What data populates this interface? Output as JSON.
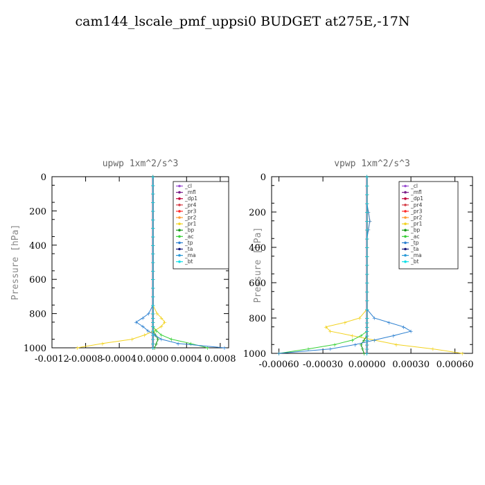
{
  "title": "cam144_lscale_pmf_uppsi0  BUDGET at275E,-17N",
  "colors": {
    "_cl": "#9a4fd1",
    "_mfl": "#7a1e8a",
    "_dp1": "#c0003a",
    "_pr4": "#d6404a",
    "_pr3": "#ff2a2a",
    "_pr2": "#ff9a30",
    "_pr1": "#f2d21e",
    "_bp": "#1a9a1a",
    "_ac": "#36d036",
    "_tp": "#2a7fd0",
    "_ta": "#1a1a7a",
    "_ma": "#2a9ad8",
    "_bt": "#10e0e8"
  },
  "chart_data": [
    {
      "type": "line",
      "title": "upwp  1xm^2/s^3",
      "ylabel": "Pressure [hPa]",
      "xlim": [
        -0.0012,
        0.0009
      ],
      "ylim": [
        1000,
        0
      ],
      "xticks": [
        "-0.0012",
        "-0.0008",
        "-0.0004",
        "0.0000",
        "0.0004",
        "0.0008"
      ],
      "yticks": [
        "0",
        "200",
        "400",
        "600",
        "800",
        "1000"
      ],
      "legend_loc": "top-right",
      "pressure": [
        0,
        50,
        100,
        150,
        200,
        250,
        300,
        350,
        400,
        450,
        500,
        550,
        600,
        650,
        700,
        750,
        800,
        825,
        850,
        875,
        900,
        925,
        950,
        975,
        1000
      ],
      "series": [
        {
          "name": "_cl",
          "values": [
            0,
            0,
            0,
            0,
            0,
            0,
            0,
            0,
            0,
            0,
            0,
            0,
            0,
            0,
            0,
            0,
            0,
            0,
            0,
            0,
            0,
            0,
            0,
            0,
            0
          ]
        },
        {
          "name": "_mfl",
          "values": [
            0,
            0,
            0,
            0,
            0,
            0,
            0,
            0,
            0,
            0,
            0,
            0,
            0,
            0,
            0,
            0,
            0,
            0,
            0,
            0,
            0,
            0,
            0,
            0,
            0
          ]
        },
        {
          "name": "_dp1",
          "values": [
            0,
            0,
            0,
            0,
            0,
            0,
            0,
            0,
            0,
            0,
            0,
            0,
            0,
            0,
            0,
            0,
            0,
            0,
            0,
            0,
            0,
            0,
            0,
            0,
            0
          ]
        },
        {
          "name": "_pr4",
          "values": [
            0,
            0,
            0,
            0,
            0,
            0,
            0,
            0,
            0,
            0,
            0,
            0,
            0,
            0,
            0,
            0,
            0,
            0,
            0,
            0,
            0,
            0,
            0,
            0,
            0
          ]
        },
        {
          "name": "_pr3",
          "values": [
            0,
            0,
            0,
            0,
            0,
            0,
            0,
            0,
            0,
            0,
            0,
            0,
            0,
            0,
            0,
            0,
            0,
            0,
            0,
            0,
            0,
            0,
            0,
            0,
            0
          ]
        },
        {
          "name": "_pr2",
          "values": [
            0,
            0,
            0,
            0,
            0,
            0,
            0,
            0,
            0,
            0,
            0,
            0,
            0,
            0,
            0,
            0,
            0,
            0,
            0,
            0,
            0,
            0,
            0,
            0,
            0
          ]
        },
        {
          "name": "_pr1",
          "values": [
            0,
            0,
            0,
            0,
            0,
            0,
            0,
            0,
            0,
            0,
            0,
            0,
            0,
            0,
            0,
            0,
            5e-05,
            0.0001,
            0.00014,
            0.0001,
            2e-05,
            -0.0001,
            -0.00025,
            -0.0006,
            -0.0009
          ]
        },
        {
          "name": "_bp",
          "values": [
            0,
            0,
            0,
            0,
            0,
            0,
            0,
            0,
            0,
            0,
            0,
            0,
            0,
            0,
            0,
            0,
            0,
            0,
            0,
            0,
            0,
            3e-05,
            6e-05,
            4e-05,
            2e-05
          ]
        },
        {
          "name": "_ac",
          "values": [
            0,
            0,
            0,
            0,
            0,
            0,
            0,
            0,
            0,
            0,
            0,
            0,
            0,
            0,
            0,
            0,
            0,
            0,
            0,
            0,
            4e-05,
            0.0001,
            0.00022,
            0.00045,
            0.00065
          ]
        },
        {
          "name": "_tp",
          "values": [
            0,
            0,
            0,
            0,
            0,
            0,
            0,
            0,
            0,
            0,
            0,
            0,
            0,
            0,
            0,
            0,
            -5e-05,
            -0.00012,
            -0.0002,
            -0.00012,
            -6e-05,
            2e-05,
            0.0001,
            0.0003,
            0.00085
          ]
        },
        {
          "name": "_ta",
          "values": [
            0,
            0,
            0,
            0,
            0,
            0,
            0,
            0,
            0,
            0,
            0,
            0,
            0,
            0,
            0,
            0,
            0,
            0,
            0,
            0,
            0,
            0,
            0,
            0,
            0
          ]
        },
        {
          "name": "_ma",
          "values": [
            0,
            0,
            0,
            0,
            0,
            0,
            0,
            0,
            0,
            0,
            0,
            0,
            0,
            0,
            0,
            0,
            0,
            0,
            0,
            0,
            0,
            0,
            0,
            0,
            0
          ]
        },
        {
          "name": "_bt",
          "values": [
            0,
            0,
            0,
            0,
            0,
            0,
            0,
            0,
            0,
            0,
            0,
            0,
            0,
            0,
            0,
            0,
            0,
            0,
            0,
            0,
            0,
            0,
            0,
            0,
            0
          ]
        }
      ]
    },
    {
      "type": "line",
      "title": "vpwp  1xm^2/s^3",
      "ylabel": "Pressure [hPa]",
      "xlim": [
        -0.00065,
        0.00072
      ],
      "ylim": [
        1000,
        0
      ],
      "xticks": [
        "-0.00060",
        "-0.00030",
        "0.00000",
        "0.00030",
        "0.00060"
      ],
      "yticks": [
        "0",
        "200",
        "400",
        "600",
        "800",
        "1000"
      ],
      "legend_loc": "top-right",
      "pressure": [
        0,
        50,
        100,
        150,
        200,
        250,
        300,
        350,
        400,
        450,
        500,
        550,
        600,
        650,
        700,
        750,
        800,
        825,
        850,
        875,
        900,
        925,
        950,
        975,
        1000
      ],
      "series": [
        {
          "name": "_cl",
          "values": [
            0,
            0,
            0,
            0,
            0,
            0,
            0,
            0,
            0,
            0,
            0,
            0,
            0,
            0,
            0,
            0,
            0,
            0,
            0,
            0,
            0,
            0,
            0,
            0,
            0
          ]
        },
        {
          "name": "_mfl",
          "values": [
            0,
            0,
            0,
            0,
            0,
            0,
            0,
            0,
            0,
            0,
            0,
            0,
            0,
            0,
            0,
            0,
            0,
            0,
            0,
            0,
            0,
            0,
            0,
            0,
            0
          ]
        },
        {
          "name": "_dp1",
          "values": [
            0,
            0,
            0,
            0,
            0,
            0,
            0,
            0,
            0,
            0,
            0,
            0,
            0,
            0,
            0,
            0,
            0,
            0,
            0,
            0,
            0,
            0,
            0,
            0,
            0
          ]
        },
        {
          "name": "_pr4",
          "values": [
            0,
            0,
            0,
            0,
            0,
            0,
            0,
            0,
            0,
            0,
            0,
            0,
            0,
            0,
            0,
            0,
            0,
            0,
            0,
            0,
            0,
            0,
            0,
            0,
            0
          ]
        },
        {
          "name": "_pr3",
          "values": [
            0,
            0,
            0,
            0,
            0,
            0,
            0,
            0,
            0,
            0,
            0,
            0,
            0,
            0,
            0,
            0,
            0,
            0,
            0,
            0,
            0,
            0,
            0,
            0,
            0
          ]
        },
        {
          "name": "_pr2",
          "values": [
            0,
            0,
            0,
            0,
            1e-05,
            2e-05,
            1e-05,
            0,
            0,
            0,
            0,
            0,
            0,
            0,
            0,
            0,
            0,
            0,
            0,
            0,
            0,
            0,
            0,
            0,
            0
          ]
        },
        {
          "name": "_pr1",
          "values": [
            0,
            0,
            0,
            0,
            0,
            0,
            0,
            0,
            0,
            0,
            0,
            0,
            0,
            0,
            0,
            0,
            -5e-05,
            -0.00015,
            -0.00028,
            -0.00025,
            -0.0001,
            5e-05,
            0.0002,
            0.00045,
            0.00065
          ]
        },
        {
          "name": "_bp",
          "values": [
            0,
            0,
            0,
            0,
            0,
            0,
            0,
            0,
            0,
            0,
            0,
            0,
            0,
            0,
            0,
            0,
            0,
            0,
            0,
            0,
            0,
            -2e-05,
            -4e-05,
            -3e-05,
            -2e-05
          ]
        },
        {
          "name": "_ac",
          "values": [
            0,
            0,
            0,
            0,
            0,
            0,
            0,
            0,
            0,
            0,
            0,
            0,
            0,
            0,
            0,
            0,
            0,
            0,
            0,
            0,
            -4e-05,
            -0.0001,
            -0.00022,
            -0.0004,
            -0.0006
          ]
        },
        {
          "name": "_tp",
          "values": [
            0,
            0,
            0,
            0,
            1e-05,
            2e-05,
            1e-05,
            0,
            0,
            0,
            0,
            0,
            0,
            0,
            0,
            0,
            5e-05,
            0.00015,
            0.00025,
            0.0003,
            0.00018,
            5e-05,
            -8e-05,
            -0.00025,
            -0.0006
          ]
        },
        {
          "name": "_ta",
          "values": [
            0,
            0,
            0,
            0,
            0,
            0,
            0,
            0,
            0,
            0,
            0,
            0,
            0,
            0,
            0,
            0,
            0,
            0,
            0,
            0,
            0,
            0,
            0,
            0,
            0
          ]
        },
        {
          "name": "_ma",
          "values": [
            0,
            0,
            0,
            0,
            0,
            0,
            0,
            0,
            0,
            0,
            0,
            0,
            0,
            0,
            0,
            0,
            0,
            0,
            0,
            0,
            0,
            0,
            0,
            0,
            0
          ]
        },
        {
          "name": "_bt",
          "values": [
            0,
            0,
            0,
            0,
            0,
            0,
            0,
            0,
            0,
            0,
            0,
            0,
            0,
            0,
            0,
            0,
            0,
            0,
            0,
            0,
            0,
            0,
            0,
            0,
            0
          ]
        }
      ]
    }
  ]
}
